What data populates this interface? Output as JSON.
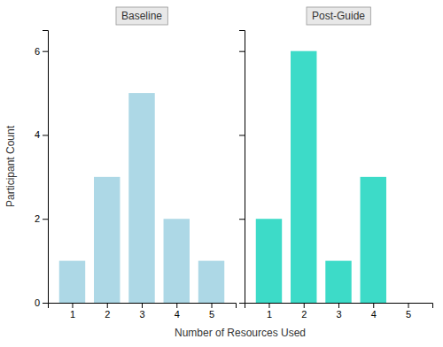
{
  "chart_data": [
    {
      "type": "bar",
      "title": "Baseline",
      "x_label": "Number of Resources Used",
      "y_label": "Participant Count",
      "x": [
        1,
        2,
        3,
        4,
        5
      ],
      "values": [
        1,
        3,
        5,
        2,
        1
      ],
      "color": "#ADD8E6",
      "xlim": [
        0.3,
        5.7
      ],
      "xticks": [
        1,
        2,
        3,
        4,
        5
      ],
      "ylim": [
        0,
        6.5
      ],
      "yticks": [
        0,
        2,
        4,
        6
      ],
      "grid": false
    },
    {
      "type": "bar",
      "title": "Post-Guide",
      "x": [
        1,
        2,
        3,
        4,
        5
      ],
      "values": [
        2,
        6,
        1,
        3,
        0
      ],
      "color": "#3DDBC8",
      "xlim": [
        0.3,
        5.7
      ],
      "xticks": [
        1,
        2,
        3,
        4,
        5
      ],
      "ylim": [
        0,
        6.5
      ],
      "yticks": [
        0,
        2,
        4,
        6
      ],
      "grid": false,
      "tick_labels": "x"
    }
  ]
}
